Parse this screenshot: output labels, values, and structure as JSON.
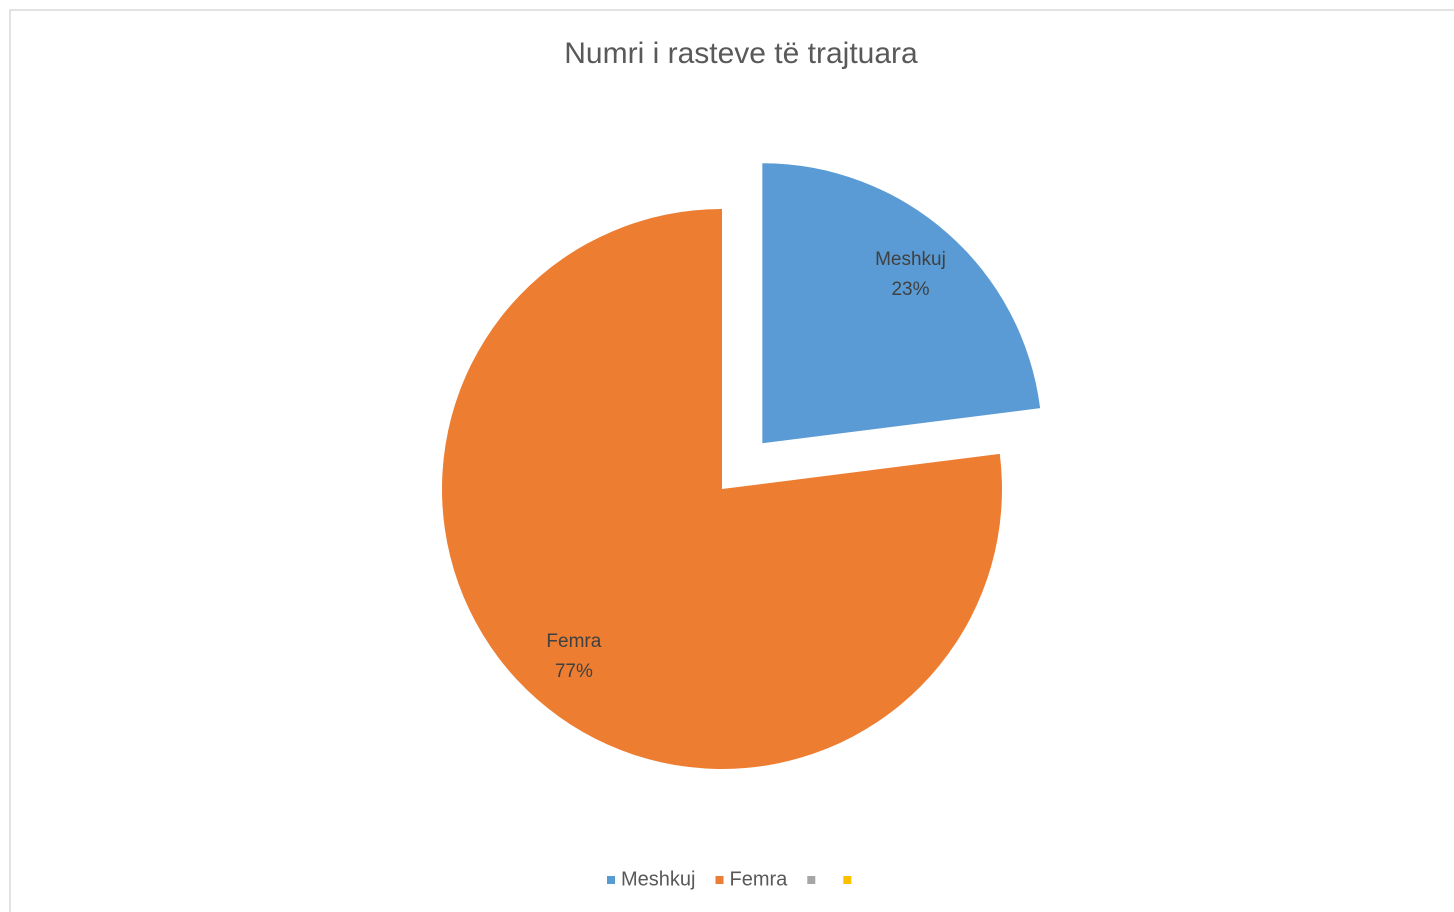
{
  "chart_data": {
    "type": "pie",
    "title": "Numri i rasteve të trajtuara",
    "categories": [
      "Meshkuj",
      "Femra",
      null,
      null
    ],
    "values": [
      23,
      77,
      0,
      0
    ],
    "value_labels": [
      "23%",
      "77%",
      null,
      null
    ],
    "colors": [
      "#5b9bd5",
      "#ed7d31",
      "#a5a5a5",
      "#ffc000"
    ],
    "legend": "bottom"
  }
}
